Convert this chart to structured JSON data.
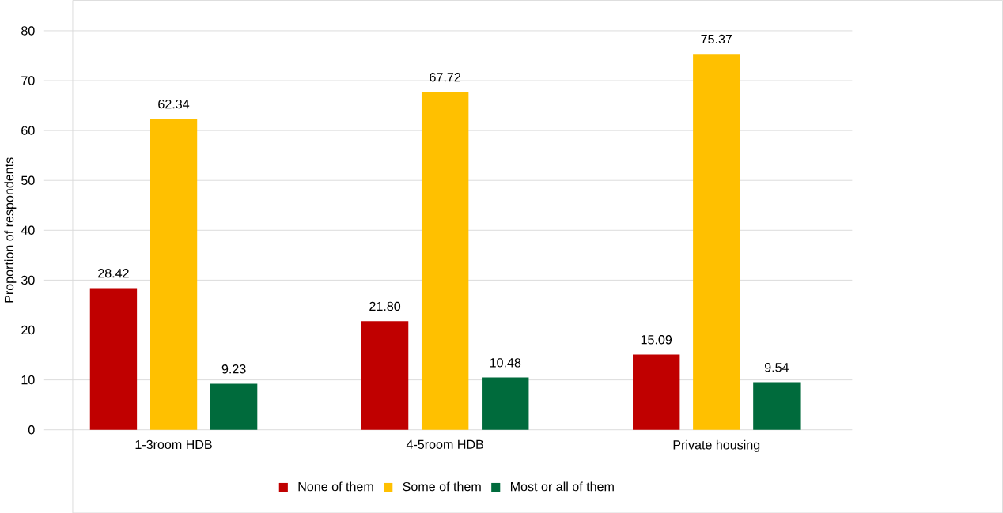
{
  "chart_data": {
    "type": "bar",
    "ylabel": "Proportion of respondents",
    "categories": [
      "1-3room HDB",
      "4-5room HDB",
      "Private housing"
    ],
    "series": [
      {
        "name": "None of them",
        "color": "#c00000",
        "values": [
          28.42,
          21.8,
          15.09
        ],
        "value_labels": [
          "28.42",
          "21.80",
          "15.09"
        ]
      },
      {
        "name": "Some of them",
        "color": "#ffc000",
        "values": [
          62.34,
          67.72,
          75.37
        ],
        "value_labels": [
          "62.34",
          "67.72",
          "75.37"
        ]
      },
      {
        "name": "Most or all of them",
        "color": "#006b3c",
        "values": [
          9.23,
          10.48,
          9.54
        ],
        "value_labels": [
          "9.23",
          "10.48",
          "9.54"
        ]
      }
    ],
    "ylim": [
      0,
      80
    ],
    "yticks": [
      0,
      10,
      20,
      30,
      40,
      50,
      60,
      70,
      80
    ],
    "grid": "y",
    "legend": "bottom"
  }
}
